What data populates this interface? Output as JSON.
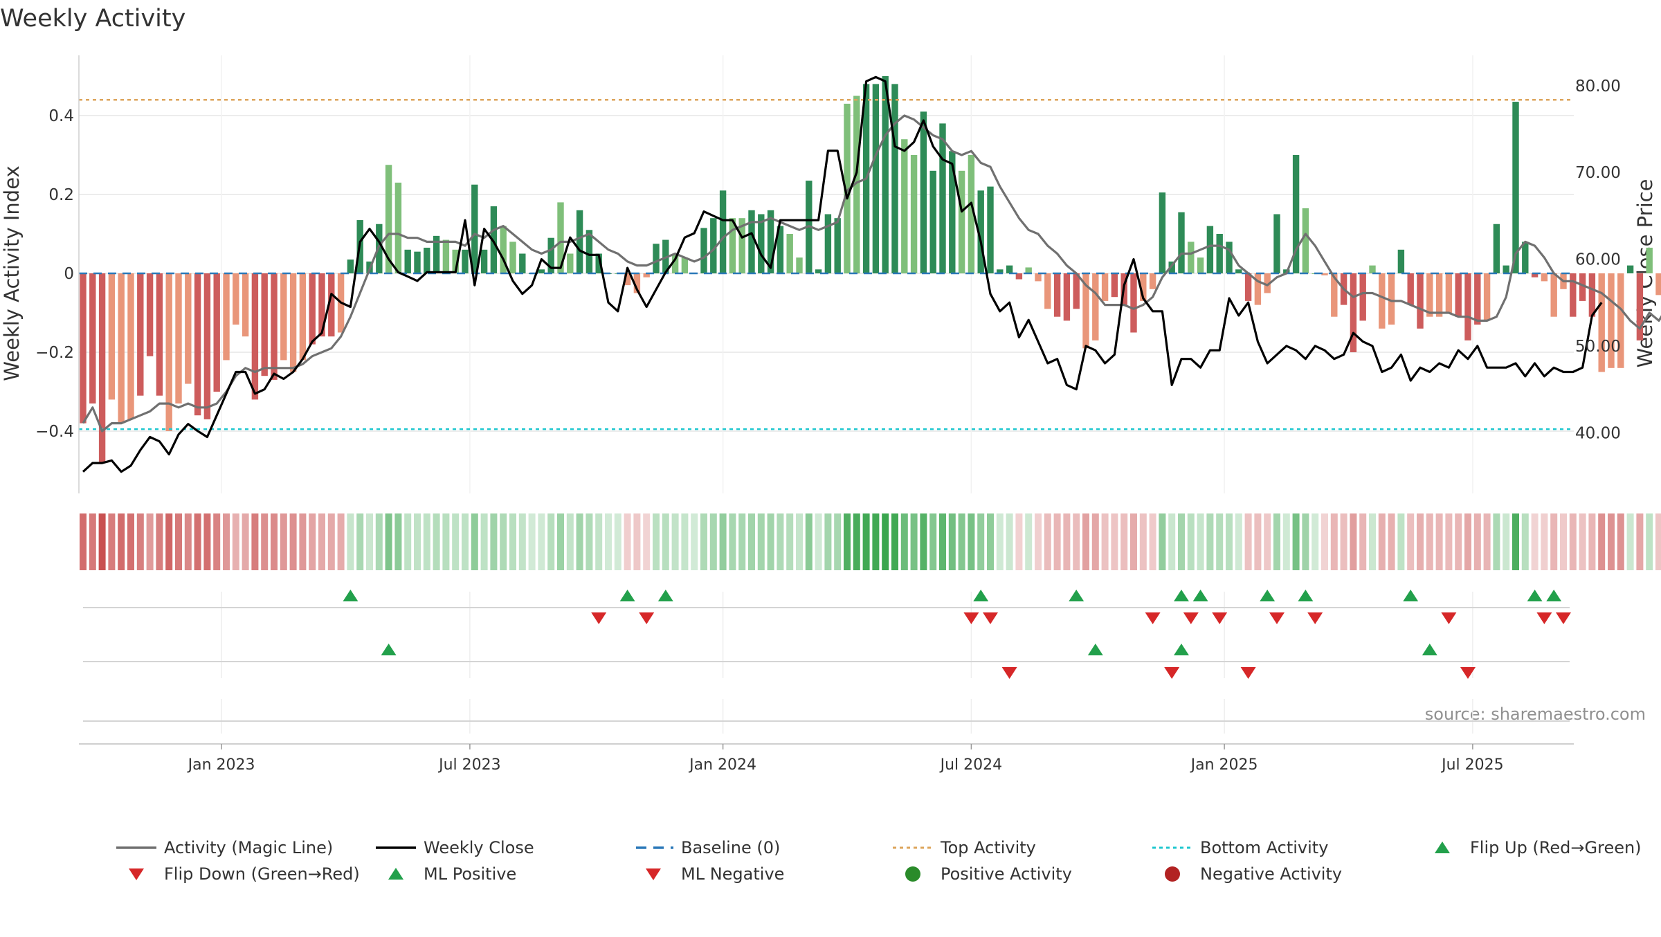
{
  "chart_data": {
    "type": "bar",
    "title": "Weekly Activity",
    "ylabel": "Weekly Activity Index",
    "y2label": "Weekly Close Price",
    "ylim": [
      -0.55,
      0.55
    ],
    "y2lim": [
      33.0,
      83.5
    ],
    "yticks": [
      -0.4,
      -0.2,
      0,
      0.2,
      0.4
    ],
    "yticklabels": [
      "−0.4",
      "−0.2",
      "0",
      "0.2",
      "0.4"
    ],
    "y2ticks": [
      40,
      50,
      60,
      70,
      80
    ],
    "y2ticklabels": [
      "40.00",
      "50.00",
      "60.00",
      "70.00",
      "80.00"
    ],
    "xdomain_weeks": [
      0,
      157
    ],
    "xticks": [
      {
        "label": "Jan 2023",
        "week": 14.5
      },
      {
        "label": "Jul 2023",
        "week": 40.5
      },
      {
        "label": "Jan 2024",
        "week": 67
      },
      {
        "label": "Jul 2024",
        "week": 93
      },
      {
        "label": "Jan 2025",
        "week": 119.5
      },
      {
        "label": "Jul 2025",
        "week": 145.5
      }
    ],
    "top_activity": 0.44,
    "bottom_activity": -0.395,
    "source": "source: sharemaestro.com",
    "activity": [
      -0.38,
      -0.33,
      -0.48,
      -0.32,
      -0.38,
      -0.37,
      -0.31,
      -0.21,
      -0.31,
      -0.4,
      -0.33,
      -0.28,
      -0.36,
      -0.37,
      -0.3,
      -0.22,
      -0.13,
      -0.16,
      -0.32,
      -0.26,
      -0.27,
      -0.22,
      -0.25,
      -0.22,
      -0.18,
      -0.16,
      -0.16,
      -0.15,
      0.035,
      0.135,
      0.03,
      0.125,
      0.275,
      0.23,
      0.06,
      0.055,
      0.065,
      0.095,
      0.085,
      0.06,
      0.06,
      0.225,
      0.06,
      0.17,
      0.12,
      0.08,
      0.05,
      0.0,
      0.01,
      0.09,
      0.18,
      0.05,
      0.16,
      0.11,
      0.05,
      0.0,
      0.0,
      -0.03,
      -0.05,
      -0.01,
      0.075,
      0.085,
      0.05,
      0.04,
      0.0,
      0.115,
      0.14,
      0.21,
      0.14,
      0.14,
      0.16,
      0.15,
      0.16,
      0.12,
      0.1,
      0.04,
      0.235,
      0.01,
      0.15,
      0.14,
      0.43,
      0.45,
      0.48,
      0.48,
      0.5,
      0.48,
      0.34,
      0.3,
      0.41,
      0.26,
      0.38,
      0.31,
      0.26,
      0.3,
      0.21,
      0.22,
      0.01,
      0.02,
      -0.015,
      0.015,
      -0.02,
      -0.09,
      -0.11,
      -0.12,
      -0.09,
      -0.19,
      -0.17,
      -0.07,
      -0.06,
      -0.08,
      -0.15,
      -0.07,
      -0.04,
      0.205,
      0.03,
      0.155,
      0.08,
      0.04,
      0.12,
      0.1,
      0.08,
      0.01,
      -0.07,
      -0.08,
      -0.05,
      0.15,
      0.01,
      0.3,
      0.165,
      0.0,
      -0.005,
      -0.11,
      -0.08,
      -0.2,
      -0.12,
      0.02,
      -0.14,
      -0.13,
      0.06,
      -0.08,
      -0.14,
      -0.11,
      -0.11,
      -0.1,
      -0.11,
      -0.17,
      -0.13,
      -0.12,
      0.125,
      0.02,
      0.435,
      0.08,
      -0.01,
      -0.02,
      -0.11,
      -0.04,
      -0.11,
      -0.07,
      -0.11,
      -0.25,
      -0.24,
      -0.24,
      0.02,
      -0.17,
      0.065,
      -0.055
    ],
    "weekly_close": [
      35.5,
      36.5,
      36.5,
      36.8,
      35.5,
      36.2,
      38,
      39.5,
      39,
      37.5,
      39.8,
      41,
      40.2,
      39.5,
      42,
      44.5,
      47,
      47,
      44.5,
      45,
      46.8,
      46.2,
      47,
      48.5,
      50.5,
      51.5,
      56,
      55,
      54.5,
      62,
      63.5,
      62,
      60,
      58.5,
      58,
      57.5,
      58.5,
      58.5,
      58.5,
      58.5,
      64.5,
      57,
      63.5,
      62,
      60,
      57.5,
      56,
      57,
      60,
      59,
      59,
      62.5,
      61,
      60.5,
      60.5,
      55,
      54,
      59,
      56.5,
      54.5,
      56.5,
      58.5,
      60,
      62.5,
      63,
      65.5,
      65,
      64.5,
      64.5,
      62.5,
      63,
      60.5,
      59,
      64.5,
      64.5,
      64.5,
      64.5,
      64.5,
      72.5,
      72.5,
      67,
      70,
      80.5,
      81,
      80.5,
      73,
      72.5,
      73.5,
      76,
      73,
      71.5,
      71,
      65.5,
      66.5,
      62,
      56,
      54,
      55,
      51,
      53,
      50.5,
      48,
      48.5,
      45.5,
      45,
      50,
      49.5,
      48,
      49,
      57,
      60,
      55.5,
      54,
      54,
      45.5,
      48.5,
      48.5,
      47.5,
      49.5,
      49.5,
      55.5,
      53.5,
      55,
      50.5,
      48,
      49,
      50,
      49.5,
      48.5,
      50,
      49.5,
      48.5,
      49,
      51.5,
      50.5,
      50,
      47,
      47.5,
      49,
      46,
      47.5,
      47,
      48,
      47.5,
      49.5,
      48.5,
      50,
      47.5,
      47.5,
      47.5,
      48,
      46.5,
      48,
      46.5,
      47.5,
      47,
      47,
      47.5,
      53.5,
      55
    ],
    "magic_line": [
      -0.38,
      -0.34,
      -0.4,
      -0.38,
      -0.38,
      -0.37,
      -0.36,
      -0.35,
      -0.33,
      -0.33,
      -0.34,
      -0.33,
      -0.34,
      -0.34,
      -0.33,
      -0.3,
      -0.26,
      -0.24,
      -0.25,
      -0.24,
      -0.24,
      -0.24,
      -0.24,
      -0.23,
      -0.21,
      -0.2,
      -0.19,
      -0.16,
      -0.11,
      -0.05,
      0.01,
      0.07,
      0.1,
      0.1,
      0.09,
      0.09,
      0.08,
      0.08,
      0.08,
      0.08,
      0.07,
      0.1,
      0.09,
      0.11,
      0.12,
      0.1,
      0.08,
      0.06,
      0.05,
      0.06,
      0.08,
      0.08,
      0.09,
      0.1,
      0.08,
      0.06,
      0.05,
      0.03,
      0.02,
      0.02,
      0.03,
      0.04,
      0.05,
      0.04,
      0.03,
      0.04,
      0.06,
      0.09,
      0.11,
      0.12,
      0.13,
      0.13,
      0.14,
      0.13,
      0.12,
      0.11,
      0.12,
      0.11,
      0.12,
      0.13,
      0.21,
      0.23,
      0.24,
      0.3,
      0.35,
      0.38,
      0.4,
      0.39,
      0.37,
      0.35,
      0.34,
      0.31,
      0.3,
      0.31,
      0.28,
      0.27,
      0.22,
      0.18,
      0.14,
      0.11,
      0.1,
      0.07,
      0.05,
      0.02,
      0.0,
      -0.03,
      -0.05,
      -0.08,
      -0.08,
      -0.08,
      -0.09,
      -0.08,
      -0.06,
      -0.01,
      0.02,
      0.05,
      0.05,
      0.06,
      0.07,
      0.07,
      0.06,
      0.02,
      0.0,
      -0.02,
      -0.03,
      -0.01,
      0.0,
      0.06,
      0.1,
      0.07,
      0.03,
      -0.01,
      -0.04,
      -0.06,
      -0.05,
      -0.05,
      -0.06,
      -0.07,
      -0.07,
      -0.08,
      -0.09,
      -0.1,
      -0.1,
      -0.1,
      -0.11,
      -0.11,
      -0.12,
      -0.12,
      -0.11,
      -0.06,
      0.05,
      0.08,
      0.07,
      0.04,
      0.0,
      -0.02,
      -0.02,
      -0.03,
      -0.04,
      -0.05,
      -0.07,
      -0.09,
      -0.12,
      -0.14,
      -0.1,
      -0.12,
      -0.08
    ],
    "flip_up": [
      28,
      57,
      61,
      94,
      104,
      115,
      117,
      124,
      128,
      139,
      152,
      154
    ],
    "flip_down": [
      54,
      59,
      93,
      95,
      112,
      116,
      119,
      125,
      129,
      143,
      153,
      155
    ],
    "ml_positive": [
      32,
      106,
      115,
      141
    ],
    "ml_negative": [
      97,
      114,
      122,
      145
    ],
    "legend": [
      {
        "label": "Activity (Magic Line)",
        "symbol": "line",
        "color": "#707070"
      },
      {
        "label": "Weekly Close",
        "symbol": "line",
        "color": "#000000"
      },
      {
        "label": "Baseline (0)",
        "symbol": "dashed",
        "color": "#2b78b8"
      },
      {
        "label": "Top Activity",
        "symbol": "dotted",
        "color": "#dda55c"
      },
      {
        "label": "Bottom Activity",
        "symbol": "dotted",
        "color": "#1fc7cf"
      },
      {
        "label": "Flip Up (Red→Green)",
        "symbol": "tri-up",
        "color": "#22a04b"
      },
      {
        "label": "Flip Down (Green→Red)",
        "symbol": "tri-down",
        "color": "#d62728"
      },
      {
        "label": "ML Positive",
        "symbol": "tri-up",
        "color": "#22a04b"
      },
      {
        "label": "ML Negative",
        "symbol": "tri-down",
        "color": "#d62728"
      },
      {
        "label": "Positive Activity",
        "symbol": "dot",
        "color": "#2a8b2a"
      },
      {
        "label": "Negative Activity",
        "symbol": "dot",
        "color": "#b22222"
      }
    ],
    "colors": {
      "pos_strong": "#2e8b57",
      "pos_light": "#7fbf7a",
      "neg_strong": "#cd5c5c",
      "neg_light": "#e9967a",
      "grid": "#e6e6e6",
      "axis": "#cfcfcf"
    }
  }
}
